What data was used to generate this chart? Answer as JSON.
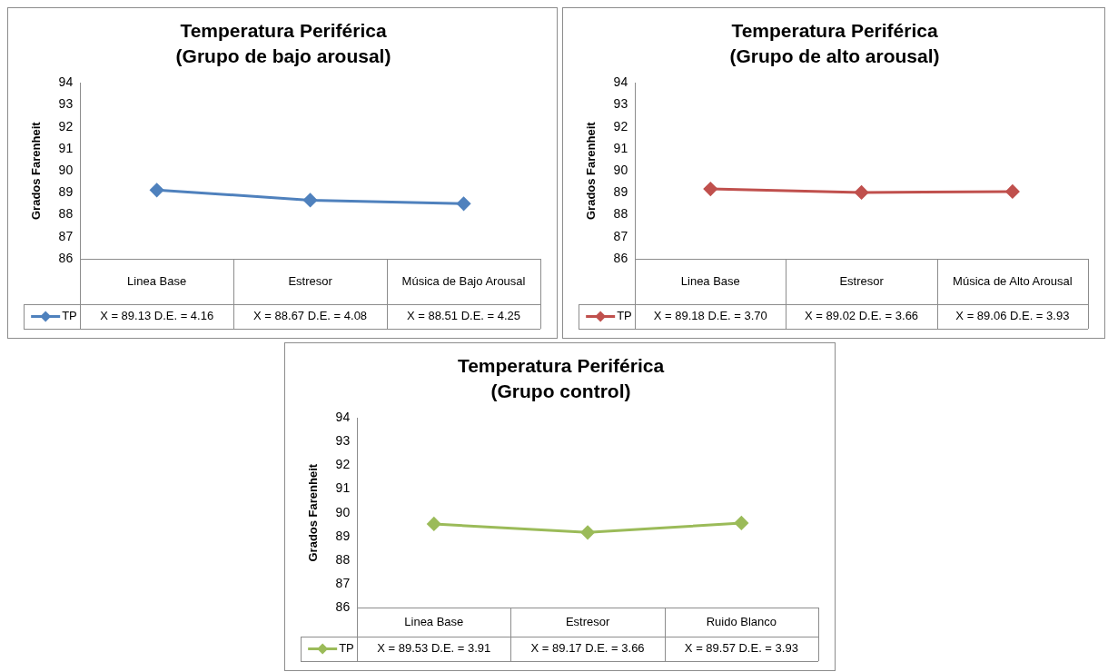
{
  "chart_data": [
    {
      "type": "line",
      "title": "Temperatura Periférica",
      "subtitle": "(Grupo de bajo arousal)",
      "ylabel": "Grados Farenheit",
      "categories": [
        "Linea Base",
        "Estresor",
        "Música de Bajo Arousal"
      ],
      "series": [
        {
          "name": "TP",
          "color": "#4f81bd",
          "values": [
            89.13,
            88.67,
            88.51
          ],
          "value_labels": [
            "X = 89.13 D.E. = 4.16",
            "X = 88.67 D.E. = 4.08",
            "X = 88.51 D.E. = 4.25"
          ]
        }
      ],
      "ylim": [
        86,
        94
      ],
      "yticks": [
        86,
        87,
        88,
        89,
        90,
        91,
        92,
        93,
        94
      ],
      "marker": "diamond",
      "legend": "bottom left"
    },
    {
      "type": "line",
      "title": "Temperatura Periférica",
      "subtitle": "(Grupo de alto arousal)",
      "ylabel": "Grados Farenheit",
      "categories": [
        "Linea Base",
        "Estresor",
        "Música de Alto Arousal"
      ],
      "series": [
        {
          "name": "TP",
          "color": "#c0504d",
          "values": [
            89.18,
            89.02,
            89.06
          ],
          "value_labels": [
            "X = 89.18 D.E. = 3.70",
            "X = 89.02 D.E. = 3.66",
            "X = 89.06 D.E. = 3.93"
          ]
        }
      ],
      "ylim": [
        86,
        94
      ],
      "yticks": [
        86,
        87,
        88,
        89,
        90,
        91,
        92,
        93,
        94
      ],
      "marker": "diamond",
      "legend": "bottom left"
    },
    {
      "type": "line",
      "title": "Temperatura Periférica",
      "subtitle": "(Grupo control)",
      "ylabel": "Grados Farenheit",
      "categories": [
        "Linea Base",
        "Estresor",
        "Ruido Blanco"
      ],
      "series": [
        {
          "name": "TP",
          "color": "#9bbb59",
          "values": [
            89.53,
            89.17,
            89.57
          ],
          "value_labels": [
            "X = 89.53 D.E. = 3.91",
            "X = 89.17 D.E. = 3.66",
            "X = 89.57 D.E. = 3.93"
          ]
        }
      ],
      "ylim": [
        86,
        94
      ],
      "yticks": [
        86,
        87,
        88,
        89,
        90,
        91,
        92,
        93,
        94
      ],
      "marker": "diamond",
      "legend": "bottom left"
    }
  ]
}
